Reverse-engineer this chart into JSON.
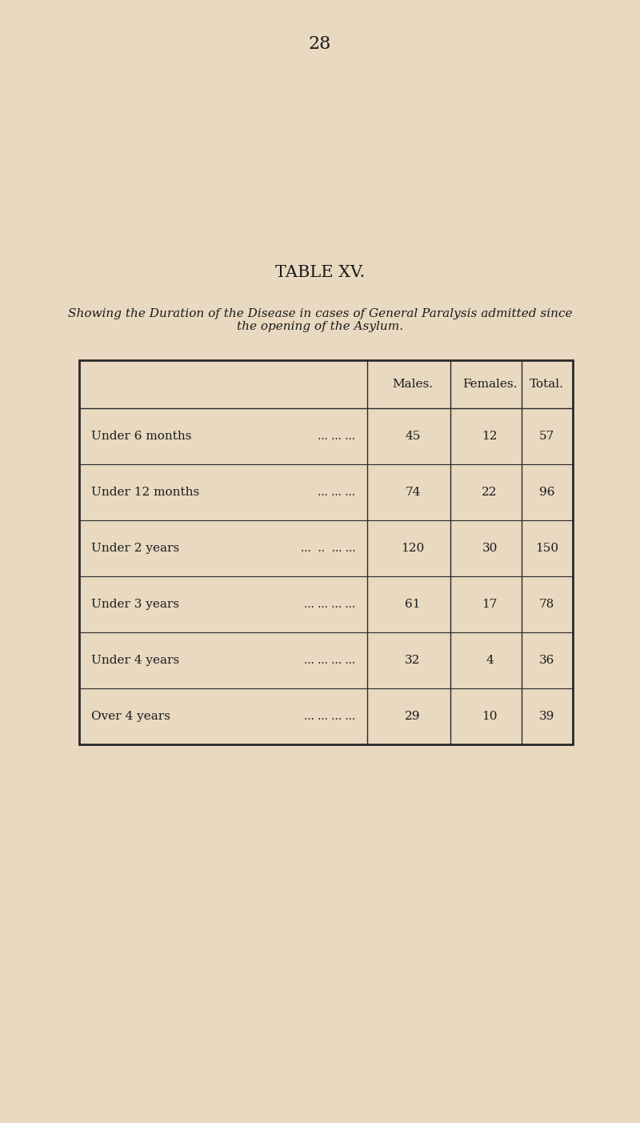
{
  "page_number": "28",
  "title": "TABLE XV.",
  "subtitle": "Showing the Duration of the Disease in cases of General Paralysis admitted since\nthe opening of the Asylum.",
  "col_headers": [
    "Males.",
    "Females.",
    "Total."
  ],
  "rows": [
    {
      "label": "Under 6 months",
      "dots": "... ... ...",
      "males": 45,
      "females": 12,
      "total": 57
    },
    {
      "label": "Under 12 months",
      "dots": "... ... ...",
      "males": 74,
      "females": 22,
      "total": 96
    },
    {
      "label": "Under 2 years",
      "dots": "...  ..  ... ...",
      "males": 120,
      "females": 30,
      "total": 150
    },
    {
      "label": "Under 3 years",
      "dots": "... ... ... ...",
      "males": 61,
      "females": 17,
      "total": 78
    },
    {
      "label": "Under 4 years",
      "dots": "... ... ... ...",
      "males": 32,
      "females": 4,
      "total": 36
    },
    {
      "label": "Over 4 years",
      "dots": "... ... ... ...",
      "males": 29,
      "females": 10,
      "total": 39
    }
  ],
  "background_color": "#e8d9c0",
  "text_color": "#1a1a1a",
  "line_color": "#2a2a2a",
  "page_num_fontsize": 16,
  "title_fontsize": 15,
  "subtitle_fontsize": 11,
  "table_fontsize": 11,
  "header_fontsize": 11
}
